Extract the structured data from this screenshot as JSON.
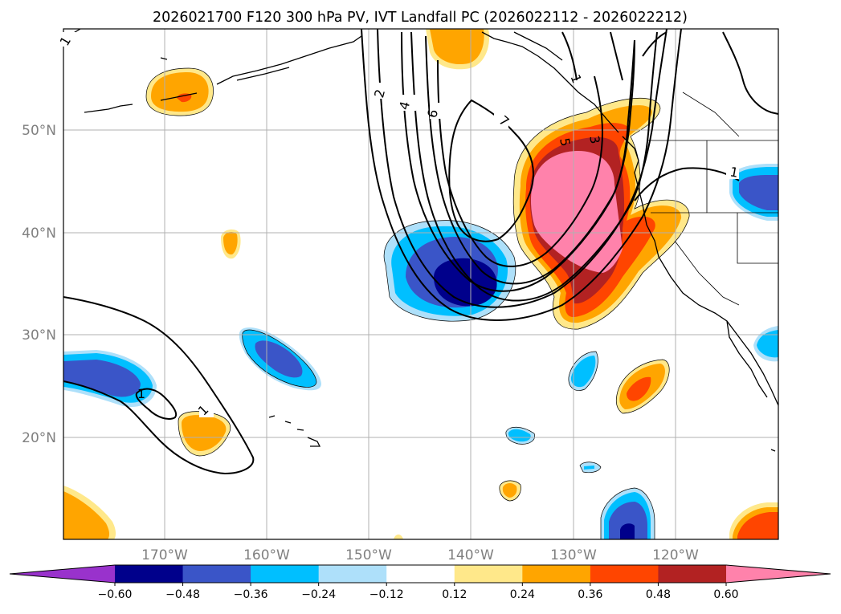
{
  "title": "2026021700 F120 300 hPa PV, IVT Landfall PC (2026022112 - 2026022212)",
  "axes": {
    "lon_ticks": [
      "170°W",
      "160°W",
      "150°W",
      "140°W",
      "130°W",
      "120°W"
    ],
    "lat_ticks": [
      "50°N",
      "40°N",
      "30°N",
      "20°N"
    ],
    "lon_values": [
      -170,
      -160,
      -150,
      -140,
      -130,
      -120
    ],
    "lat_values": [
      50,
      40,
      30,
      20
    ],
    "lon_range": [
      -180,
      -110
    ],
    "lat_range": [
      10,
      60
    ]
  },
  "colorbar": {
    "labels": [
      "−0.60",
      "−0.48",
      "−0.36",
      "−0.24",
      "−0.12",
      "0.12",
      "0.24",
      "0.36",
      "0.48",
      "0.60"
    ],
    "levels": [
      -0.6,
      -0.48,
      -0.36,
      -0.24,
      -0.12,
      0.12,
      0.24,
      0.36,
      0.48,
      0.6
    ],
    "colors": [
      "#9932cc",
      "#00008b",
      "#3a55c8",
      "#00bfff",
      "#aee0fa",
      "#ffffff",
      "#ffe88a",
      "#ffa500",
      "#ff4500",
      "#b22222",
      "#ff82ab"
    ],
    "extend": "both"
  },
  "contours": {
    "labels": [
      "1",
      "2",
      "4",
      "6",
      "7",
      "5",
      "3",
      "1",
      "1",
      "1",
      "1"
    ],
    "levels": [
      1,
      2,
      3,
      4,
      5,
      6,
      7
    ],
    "color": "#000000"
  }
}
